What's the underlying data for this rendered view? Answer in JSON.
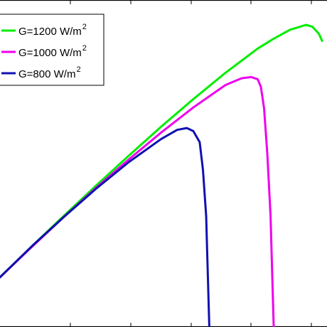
{
  "chart_data": {
    "type": "line",
    "title": "",
    "xlabel": "",
    "ylabel": "",
    "grid": false,
    "legend_position": "top-left",
    "series": [
      {
        "name": "G=1200 W/m",
        "name_sup": "2",
        "color": "#00ee00",
        "points": [
          [
            0.0,
            0.0
          ],
          [
            0.1,
            0.102
          ],
          [
            0.2,
            0.202
          ],
          [
            0.3,
            0.3
          ],
          [
            0.4,
            0.396
          ],
          [
            0.5,
            0.49
          ],
          [
            0.6,
            0.58
          ],
          [
            0.7,
            0.666
          ],
          [
            0.8,
            0.745
          ],
          [
            0.85,
            0.777
          ],
          [
            0.9,
            0.806
          ],
          [
            0.95,
            0.822
          ],
          [
            0.97,
            0.816
          ],
          [
            0.99,
            0.793
          ],
          [
            1.0,
            0.77
          ]
        ]
      },
      {
        "name": "G=1000 W/m",
        "name_sup": "2",
        "color": "#ee00ee",
        "points": [
          [
            0.0,
            0.0
          ],
          [
            0.1,
            0.1
          ],
          [
            0.2,
            0.198
          ],
          [
            0.3,
            0.293
          ],
          [
            0.4,
            0.384
          ],
          [
            0.5,
            0.471
          ],
          [
            0.6,
            0.553
          ],
          [
            0.7,
            0.626
          ],
          [
            0.75,
            0.648
          ],
          [
            0.78,
            0.652
          ],
          [
            0.8,
            0.645
          ],
          [
            0.81,
            0.62
          ],
          [
            0.82,
            0.55
          ],
          [
            0.83,
            0.4
          ],
          [
            0.84,
            0.2
          ],
          [
            0.85,
            0.0
          ]
        ]
      },
      {
        "name": "G=800  W/m",
        "name_sup": "2",
        "color": "#1010b0",
        "points": [
          [
            0.0,
            0.0
          ],
          [
            0.1,
            0.102
          ],
          [
            0.2,
            0.198
          ],
          [
            0.3,
            0.29
          ],
          [
            0.4,
            0.375
          ],
          [
            0.5,
            0.45
          ],
          [
            0.55,
            0.48
          ],
          [
            0.58,
            0.486
          ],
          [
            0.6,
            0.476
          ],
          [
            0.62,
            0.44
          ],
          [
            0.63,
            0.35
          ],
          [
            0.64,
            0.2
          ],
          [
            0.65,
            0.0
          ]
        ]
      }
    ]
  }
}
